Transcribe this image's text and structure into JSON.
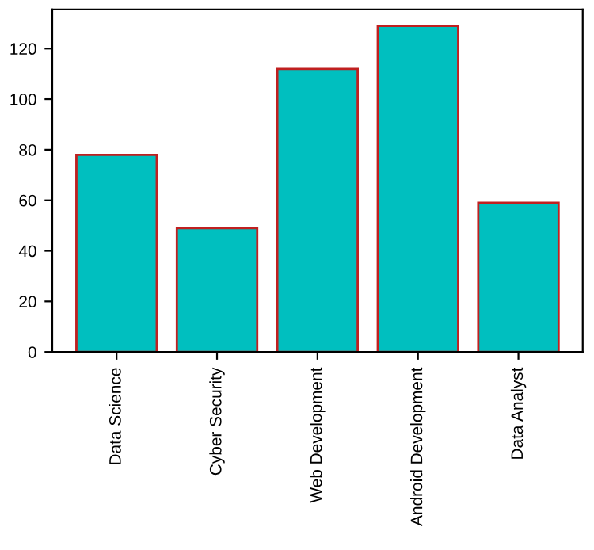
{
  "chart_data": {
    "type": "bar",
    "categories": [
      "Data Science",
      "Cyber Security",
      "Web Development",
      "Android Development",
      "Data Analyst"
    ],
    "values": [
      78,
      49,
      112,
      129,
      59
    ],
    "color": "#00bfbf",
    "ylim": [
      0,
      135.5
    ],
    "yticks": [
      0,
      20,
      40,
      60,
      80,
      100,
      120
    ],
    "grid": false,
    "legend": false
  }
}
